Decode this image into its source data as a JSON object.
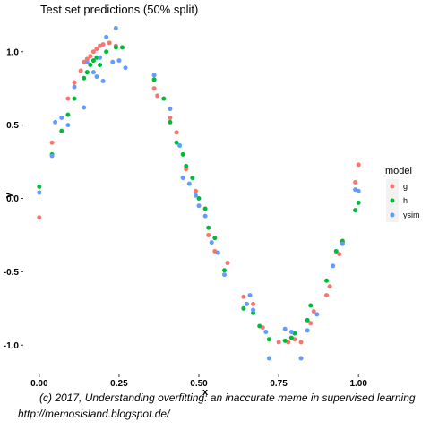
{
  "chart_data": {
    "type": "scatter",
    "title": "Test set predictions (50% split)",
    "xlabel": "x",
    "ylabel": "y",
    "xlim": [
      -0.05,
      1.05
    ],
    "ylim": [
      -1.2,
      1.2
    ],
    "x_ticks": [
      {
        "value": 0.0,
        "label": "0.00"
      },
      {
        "value": 0.25,
        "label": "0.25"
      },
      {
        "value": 0.5,
        "label": "0.50"
      },
      {
        "value": 0.75,
        "label": "0.75"
      },
      {
        "value": 1.0,
        "label": "1.00"
      }
    ],
    "y_ticks": [
      {
        "value": -1.0,
        "label": "-1.0"
      },
      {
        "value": -0.5,
        "label": "-0.5"
      },
      {
        "value": 0.0,
        "label": "0.0"
      },
      {
        "value": 0.5,
        "label": "0.5"
      },
      {
        "value": 1.0,
        "label": "1.0"
      }
    ],
    "grid": false,
    "legend": {
      "title": "model",
      "position": "right"
    },
    "series": [
      {
        "name": "g",
        "color": "#F8766D",
        "points": [
          [
            0.0,
            -0.13
          ],
          [
            0.04,
            0.38
          ],
          [
            0.09,
            0.68
          ],
          [
            0.11,
            0.79
          ],
          [
            0.13,
            0.87
          ],
          [
            0.14,
            0.93
          ],
          [
            0.15,
            0.95
          ],
          [
            0.16,
            0.97
          ],
          [
            0.17,
            1.0
          ],
          [
            0.18,
            1.02
          ],
          [
            0.19,
            1.04
          ],
          [
            0.2,
            1.05
          ],
          [
            0.22,
            1.06
          ],
          [
            0.24,
            1.04
          ],
          [
            0.36,
            0.75
          ],
          [
            0.37,
            0.7
          ],
          [
            0.41,
            0.55
          ],
          [
            0.43,
            0.45
          ],
          [
            0.46,
            0.2
          ],
          [
            0.49,
            0.05
          ],
          [
            0.53,
            -0.25
          ],
          [
            0.55,
            -0.36
          ],
          [
            0.59,
            -0.44
          ],
          [
            0.64,
            -0.67
          ],
          [
            0.67,
            -0.72
          ],
          [
            0.7,
            -0.88
          ],
          [
            0.75,
            -0.98
          ],
          [
            0.78,
            -0.98
          ],
          [
            0.8,
            -0.96
          ],
          [
            0.82,
            -0.98
          ],
          [
            0.85,
            -0.85
          ],
          [
            0.86,
            -0.77
          ],
          [
            0.9,
            -0.66
          ],
          [
            0.91,
            -0.6
          ],
          [
            0.94,
            -0.38
          ],
          [
            0.95,
            -0.3
          ],
          [
            0.99,
            0.11
          ],
          [
            1.0,
            0.23
          ]
        ]
      },
      {
        "name": "h",
        "color": "#00BA38",
        "points": [
          [
            0.0,
            0.08
          ],
          [
            0.04,
            0.3
          ],
          [
            0.07,
            0.46
          ],
          [
            0.09,
            0.57
          ],
          [
            0.11,
            0.68
          ],
          [
            0.14,
            0.82
          ],
          [
            0.15,
            0.86
          ],
          [
            0.16,
            0.91
          ],
          [
            0.17,
            0.94
          ],
          [
            0.18,
            0.96
          ],
          [
            0.19,
            0.91
          ],
          [
            0.21,
            1.0
          ],
          [
            0.24,
            1.03
          ],
          [
            0.26,
            1.03
          ],
          [
            0.36,
            0.81
          ],
          [
            0.39,
            0.68
          ],
          [
            0.41,
            0.52
          ],
          [
            0.43,
            0.38
          ],
          [
            0.45,
            0.3
          ],
          [
            0.46,
            0.22
          ],
          [
            0.48,
            0.14
          ],
          [
            0.5,
            0.0
          ],
          [
            0.52,
            -0.07
          ],
          [
            0.53,
            -0.2
          ],
          [
            0.55,
            -0.27
          ],
          [
            0.58,
            -0.49
          ],
          [
            0.64,
            -0.75
          ],
          [
            0.67,
            -0.78
          ],
          [
            0.69,
            -0.87
          ],
          [
            0.72,
            -0.96
          ],
          [
            0.77,
            -0.97
          ],
          [
            0.79,
            -0.95
          ],
          [
            0.8,
            -0.92
          ],
          [
            0.84,
            -0.83
          ],
          [
            0.85,
            -0.73
          ],
          [
            0.9,
            -0.56
          ],
          [
            0.93,
            -0.36
          ],
          [
            0.95,
            -0.29
          ],
          [
            0.99,
            -0.08
          ],
          [
            1.0,
            -0.03
          ]
        ]
      },
      {
        "name": "ysim",
        "color": "#619CFF",
        "points": [
          [
            0.0,
            0.04
          ],
          [
            0.04,
            0.29
          ],
          [
            0.05,
            0.52
          ],
          [
            0.07,
            0.55
          ],
          [
            0.09,
            0.5
          ],
          [
            0.11,
            0.76
          ],
          [
            0.14,
            0.62
          ],
          [
            0.15,
            0.93
          ],
          [
            0.17,
            0.86
          ],
          [
            0.18,
            0.83
          ],
          [
            0.19,
            0.96
          ],
          [
            0.21,
            1.1
          ],
          [
            0.2,
            0.8
          ],
          [
            0.23,
            0.93
          ],
          [
            0.24,
            1.16
          ],
          [
            0.25,
            0.94
          ],
          [
            0.27,
            0.89
          ],
          [
            0.36,
            0.84
          ],
          [
            0.41,
            0.61
          ],
          [
            0.44,
            0.36
          ],
          [
            0.45,
            0.14
          ],
          [
            0.47,
            0.1
          ],
          [
            0.49,
            0.02
          ],
          [
            0.5,
            -0.05
          ],
          [
            0.52,
            -0.12
          ],
          [
            0.54,
            -0.3
          ],
          [
            0.56,
            -0.37
          ],
          [
            0.58,
            -0.52
          ],
          [
            0.65,
            -0.72
          ],
          [
            0.66,
            -0.66
          ],
          [
            0.67,
            -0.76
          ],
          [
            0.71,
            -0.91
          ],
          [
            0.72,
            -1.09
          ],
          [
            0.77,
            -0.89
          ],
          [
            0.79,
            -0.91
          ],
          [
            0.82,
            -1.09
          ],
          [
            0.84,
            -0.9
          ],
          [
            0.87,
            -0.79
          ],
          [
            0.92,
            -0.46
          ],
          [
            0.95,
            -0.31
          ],
          [
            0.99,
            0.06
          ],
          [
            1.0,
            0.05
          ]
        ]
      }
    ]
  },
  "caption": {
    "line1": "(c) 2017, Understanding overfitting: an inaccurate meme in supervised learning",
    "line2": "http://memosisland.blogspot.de/"
  }
}
